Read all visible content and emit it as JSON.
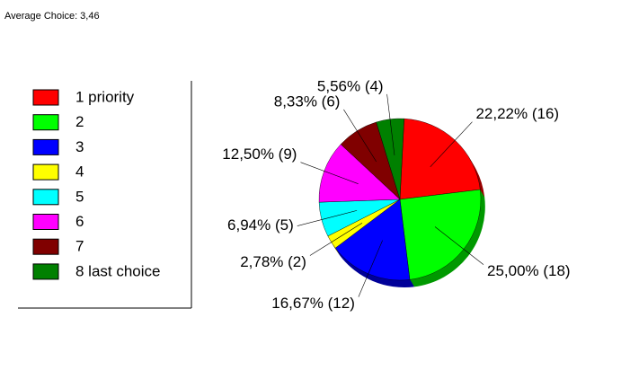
{
  "chart_data": {
    "type": "pie",
    "title": "Average Choice: 3,46",
    "categories": [
      "1 priority",
      "2",
      "3",
      "4",
      "5",
      "6",
      "7",
      "8 last choice"
    ],
    "values": [
      22.22,
      25.0,
      16.67,
      2.78,
      6.94,
      12.5,
      8.33,
      5.56
    ],
    "value_labels": [
      "22,22% (16)",
      "25,00% (18)",
      "16,67% (12)",
      "2,78% (2)",
      "6,94% (5)",
      "12,50% (9)",
      "8,33% (6)",
      "5,56% (4)"
    ],
    "colors": [
      "#ff0000",
      "#00ff00",
      "#0000ff",
      "#ffff00",
      "#00ffff",
      "#ff00ff",
      "#800000",
      "#008000"
    ]
  }
}
